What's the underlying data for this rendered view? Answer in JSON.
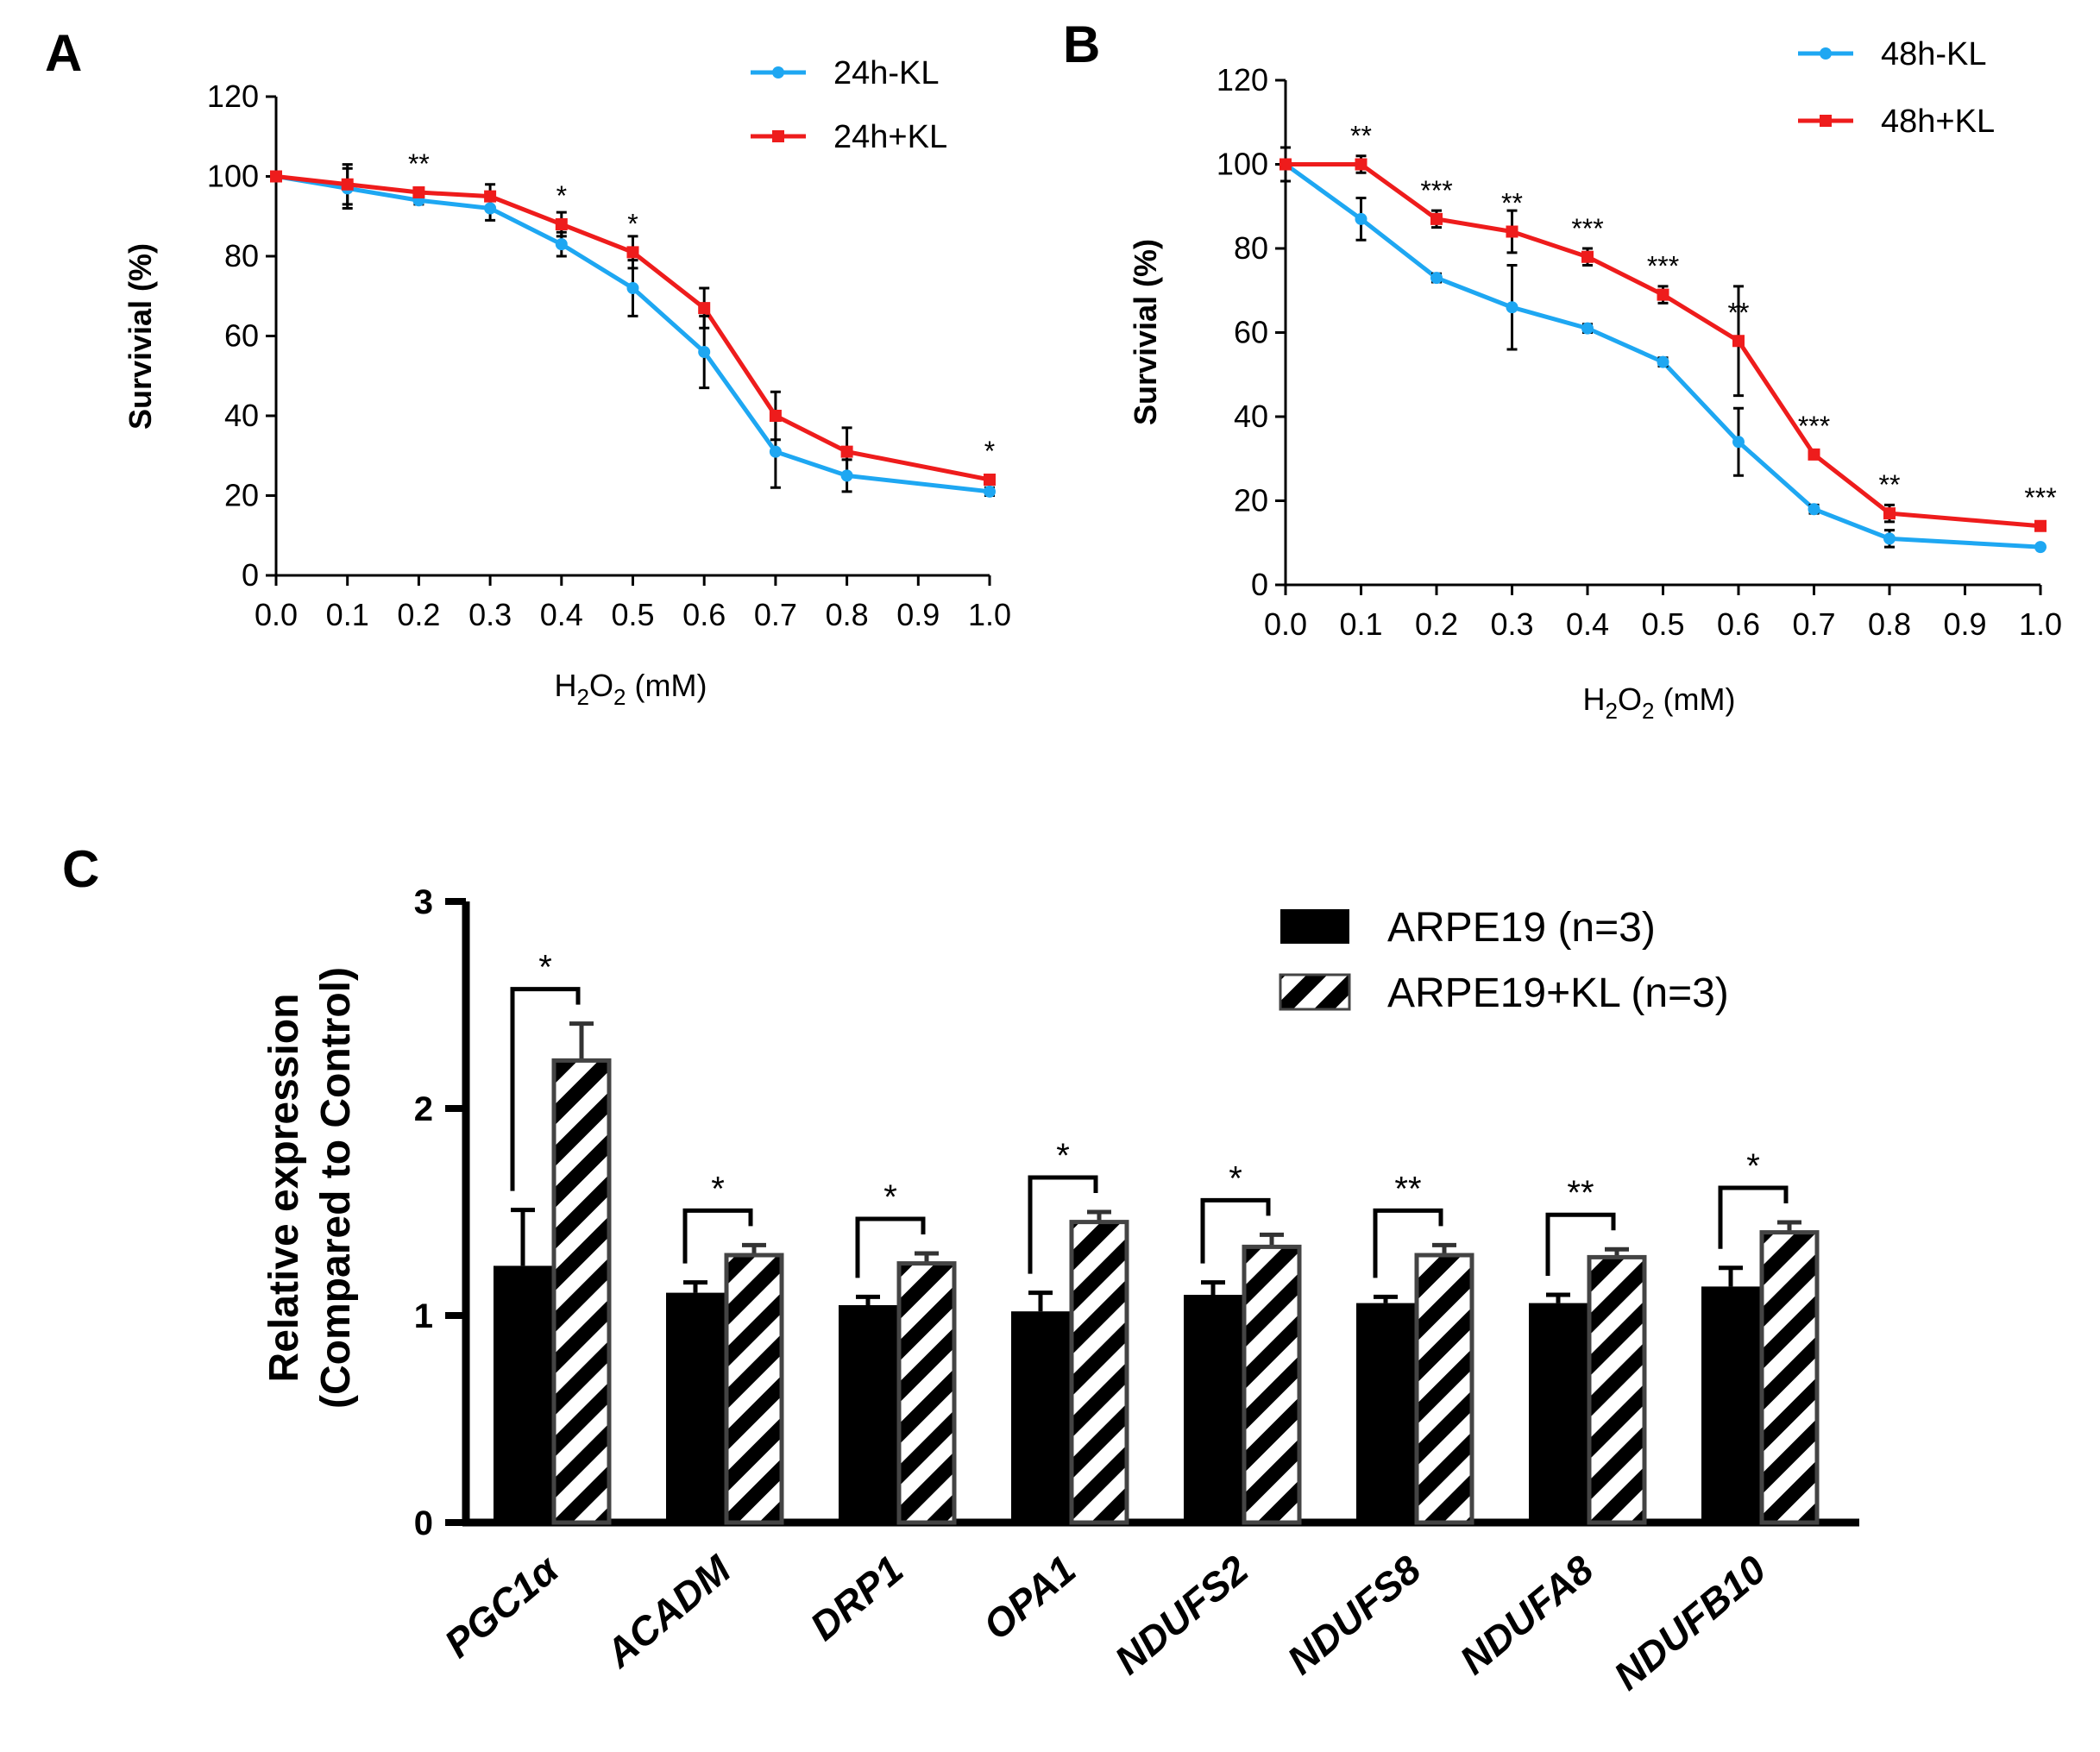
{
  "colors": {
    "minus_kl": "#1EA7F2",
    "plus_kl": "#EE1C1C",
    "axis": "#000000",
    "bar_solid": "#000000",
    "bar_hatch_outline": "#444444"
  },
  "panels": {
    "a": {
      "letter": "A"
    },
    "b": {
      "letter": "B"
    },
    "c": {
      "letter": "C"
    }
  },
  "chart_data": [
    {
      "type": "line",
      "panel": "A",
      "title": "",
      "xlabel": "H2O2 (mM)",
      "xlabel_parts": {
        "main": "H",
        "sub1": "2",
        "mid": "O",
        "sub2": "2",
        "rest": " (mM)"
      },
      "ylabel": "Survivial (%)",
      "x": [
        0.0,
        0.1,
        0.2,
        0.3,
        0.4,
        0.5,
        0.6,
        0.7,
        0.8,
        0.9,
        1.0
      ],
      "x_tick_labels": [
        "0.0",
        "0.1",
        "0.2",
        "0.3",
        "0.4",
        "0.5",
        "0.6",
        "0.7",
        "0.8",
        "0.9",
        "1.0"
      ],
      "y_ticks": [
        0,
        20,
        40,
        60,
        80,
        100,
        120
      ],
      "y_tick_labels": [
        "0",
        "20",
        "40",
        "60",
        "80",
        "100",
        "120"
      ],
      "xlim": [
        0,
        1
      ],
      "ylim": [
        0,
        120
      ],
      "legend_position": "top-right",
      "series": [
        {
          "name": "24h-KL",
          "color_key": "minus_kl",
          "marker": "circle",
          "x": [
            0.0,
            0.1,
            0.2,
            0.3,
            0.4,
            0.5,
            0.6,
            0.7,
            0.8,
            1.0
          ],
          "values": [
            100,
            97,
            94,
            92,
            83,
            72,
            56,
            31,
            25,
            21
          ],
          "errors": [
            1,
            5,
            1,
            3,
            3,
            7,
            9,
            9,
            4,
            1
          ]
        },
        {
          "name": "24h+KL",
          "color_key": "plus_kl",
          "marker": "square",
          "x": [
            0.0,
            0.1,
            0.2,
            0.3,
            0.4,
            0.5,
            0.6,
            0.7,
            0.8,
            1.0
          ],
          "values": [
            100,
            98,
            96,
            95,
            88,
            81,
            67,
            40,
            31,
            24
          ],
          "errors": [
            1,
            5,
            1,
            3,
            3,
            4,
            5,
            6,
            6,
            1
          ]
        }
      ],
      "annotations": [
        {
          "x": 0.2,
          "y": 96,
          "text": "**"
        },
        {
          "x": 0.4,
          "y": 88,
          "text": "*"
        },
        {
          "x": 0.5,
          "y": 81,
          "text": "*"
        },
        {
          "x": 1.0,
          "y": 24,
          "text": "*"
        }
      ]
    },
    {
      "type": "line",
      "panel": "B",
      "title": "",
      "xlabel": "H2O2 (mM)",
      "xlabel_parts": {
        "main": "H",
        "sub1": "2",
        "mid": "O",
        "sub2": "2",
        "rest": " (mM)"
      },
      "ylabel": "Survivial (%)",
      "x": [
        0.0,
        0.1,
        0.2,
        0.3,
        0.4,
        0.5,
        0.6,
        0.7,
        0.8,
        0.9,
        1.0
      ],
      "x_tick_labels": [
        "0.0",
        "0.1",
        "0.2",
        "0.3",
        "0.4",
        "0.5",
        "0.6",
        "0.7",
        "0.8",
        "0.9",
        "1.0"
      ],
      "y_ticks": [
        0,
        20,
        40,
        60,
        80,
        100,
        120
      ],
      "y_tick_labels": [
        "0",
        "20",
        "40",
        "60",
        "80",
        "100",
        "120"
      ],
      "xlim": [
        0,
        1
      ],
      "ylim": [
        0,
        120
      ],
      "legend_position": "top-right",
      "series": [
        {
          "name": "48h-KL",
          "color_key": "minus_kl",
          "marker": "circle",
          "x": [
            0.0,
            0.1,
            0.2,
            0.3,
            0.4,
            0.5,
            0.6,
            0.7,
            0.8,
            1.0
          ],
          "values": [
            100,
            87,
            73,
            66,
            61,
            53,
            34,
            18,
            11,
            9
          ],
          "errors": [
            4,
            5,
            1,
            10,
            1,
            1,
            8,
            1,
            2,
            0
          ]
        },
        {
          "name": "48h+KL",
          "color_key": "plus_kl",
          "marker": "square",
          "x": [
            0.0,
            0.1,
            0.2,
            0.3,
            0.4,
            0.5,
            0.6,
            0.7,
            0.8,
            1.0
          ],
          "values": [
            100,
            100,
            87,
            84,
            78,
            69,
            58,
            31,
            17,
            14
          ],
          "errors": [
            4,
            2,
            2,
            5,
            2,
            2,
            13,
            1,
            2,
            1
          ]
        }
      ],
      "annotations": [
        {
          "x": 0.1,
          "y": 100,
          "text": "**"
        },
        {
          "x": 0.2,
          "y": 87,
          "text": "***"
        },
        {
          "x": 0.3,
          "y": 84,
          "text": "**"
        },
        {
          "x": 0.4,
          "y": 78,
          "text": "***"
        },
        {
          "x": 0.5,
          "y": 69,
          "text": "***"
        },
        {
          "x": 0.6,
          "y": 58,
          "text": "**"
        },
        {
          "x": 0.7,
          "y": 31,
          "text": "***"
        },
        {
          "x": 0.8,
          "y": 17,
          "text": "**"
        },
        {
          "x": 1.0,
          "y": 14,
          "text": "***"
        }
      ]
    },
    {
      "type": "bar",
      "panel": "C",
      "title": "",
      "xlabel": "",
      "ylabel_line1": "Relative expression",
      "ylabel_line2": "(Compared to Control)",
      "ylim": [
        0,
        3
      ],
      "y_ticks": [
        0,
        1,
        2,
        3
      ],
      "y_tick_labels": [
        "0",
        "1",
        "2",
        "3"
      ],
      "legend_position": "top-right",
      "categories": [
        "PGC1α",
        "ACADM",
        "DRP1",
        "OPA1",
        "NDUFS2",
        "NDUFS8",
        "NDUFA8",
        "NDUFB10"
      ],
      "series": [
        {
          "name": "ARPE19 (n=3)",
          "fill": "solid",
          "values": [
            1.24,
            1.11,
            1.05,
            1.02,
            1.1,
            1.06,
            1.06,
            1.14
          ],
          "errors": [
            0.27,
            0.05,
            0.04,
            0.09,
            0.06,
            0.03,
            0.04,
            0.09
          ]
        },
        {
          "name": "ARPE19+KL (n=3)",
          "fill": "hatched",
          "values": [
            2.24,
            1.3,
            1.26,
            1.46,
            1.34,
            1.3,
            1.29,
            1.41
          ],
          "errors": [
            0.17,
            0.04,
            0.04,
            0.04,
            0.05,
            0.04,
            0.03,
            0.04
          ]
        }
      ],
      "significance": [
        "*",
        "*",
        "*",
        "*",
        "*",
        "**",
        "**",
        "*"
      ]
    }
  ]
}
